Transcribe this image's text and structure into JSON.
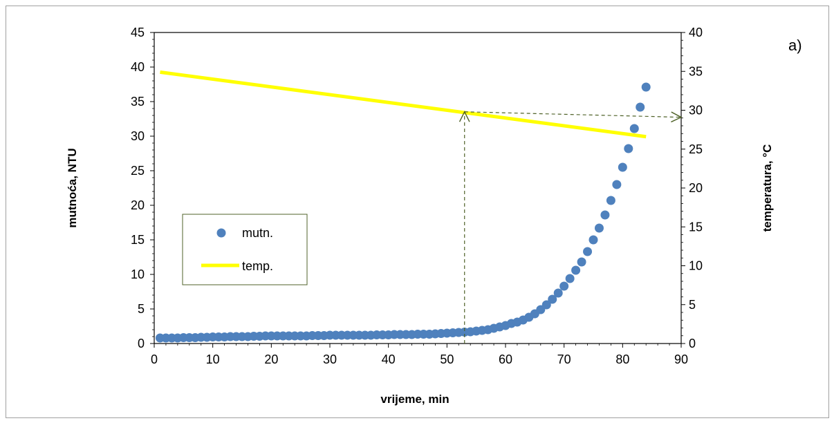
{
  "chart_data": {
    "type": "scatter",
    "panel_label": "a)",
    "xlabel": "vrijeme, min",
    "ylabel": "mutnoća, NTU",
    "y2label": "temperatura, °C",
    "xlim": [
      0,
      90
    ],
    "ylim": [
      0,
      45
    ],
    "y2lim": [
      0,
      40
    ],
    "x_ticks": [
      0,
      10,
      20,
      30,
      40,
      50,
      60,
      70,
      80,
      90
    ],
    "y_ticks": [
      0,
      5,
      10,
      15,
      20,
      25,
      30,
      35,
      40,
      45
    ],
    "y2_ticks": [
      0,
      5,
      10,
      15,
      20,
      25,
      30,
      35,
      40
    ],
    "grid": false,
    "legend_position": "middle-left",
    "colors": {
      "mutn": "#4f81bd",
      "temp": "#ffff00",
      "arrow": "#4f6228",
      "frame": "#7f7f7f"
    },
    "series": [
      {
        "name": "mutn.",
        "axis": "left",
        "marker": "circle",
        "x": [
          1,
          2,
          3,
          4,
          5,
          6,
          7,
          8,
          9,
          10,
          11,
          12,
          13,
          14,
          15,
          16,
          17,
          18,
          19,
          20,
          21,
          22,
          23,
          24,
          25,
          26,
          27,
          28,
          29,
          30,
          31,
          32,
          33,
          34,
          35,
          36,
          37,
          38,
          39,
          40,
          41,
          42,
          43,
          44,
          45,
          46,
          47,
          48,
          49,
          50,
          51,
          52,
          53,
          54,
          55,
          56,
          57,
          58,
          59,
          60,
          61,
          62,
          63,
          64,
          65,
          66,
          67,
          68,
          69,
          70,
          71,
          72,
          73,
          74,
          75,
          76,
          77,
          78,
          79,
          80,
          81,
          82,
          83,
          84
        ],
        "y": [
          0.8,
          0.8,
          0.8,
          0.8,
          0.85,
          0.85,
          0.85,
          0.9,
          0.9,
          0.95,
          0.95,
          0.95,
          1.0,
          1.0,
          1.0,
          1.0,
          1.05,
          1.05,
          1.1,
          1.1,
          1.1,
          1.1,
          1.1,
          1.1,
          1.1,
          1.1,
          1.15,
          1.15,
          1.15,
          1.2,
          1.2,
          1.2,
          1.2,
          1.2,
          1.2,
          1.2,
          1.2,
          1.25,
          1.25,
          1.25,
          1.3,
          1.3,
          1.3,
          1.3,
          1.35,
          1.35,
          1.35,
          1.4,
          1.45,
          1.5,
          1.55,
          1.6,
          1.65,
          1.7,
          1.8,
          1.9,
          2.0,
          2.2,
          2.4,
          2.6,
          2.9,
          3.1,
          3.4,
          3.8,
          4.3,
          4.9,
          5.6,
          6.4,
          7.3,
          8.3,
          9.4,
          10.6,
          11.8,
          13.3,
          15.0,
          16.7,
          18.6,
          20.7,
          23.0,
          25.5,
          28.2,
          31.1,
          34.2,
          37.1
        ]
      },
      {
        "name": "temp.",
        "axis": "right",
        "type": "line",
        "x": [
          1,
          84
        ],
        "y": [
          34.9,
          26.6
        ]
      }
    ],
    "annotations": [
      {
        "type": "arrow",
        "style": "dashed",
        "from": [
          53,
          0
        ],
        "to": [
          53,
          29.8
        ],
        "axis": "right"
      },
      {
        "type": "arrow",
        "style": "dashed",
        "from": [
          53,
          29.8
        ],
        "to": [
          90,
          29.1
        ],
        "axis": "right"
      }
    ]
  }
}
